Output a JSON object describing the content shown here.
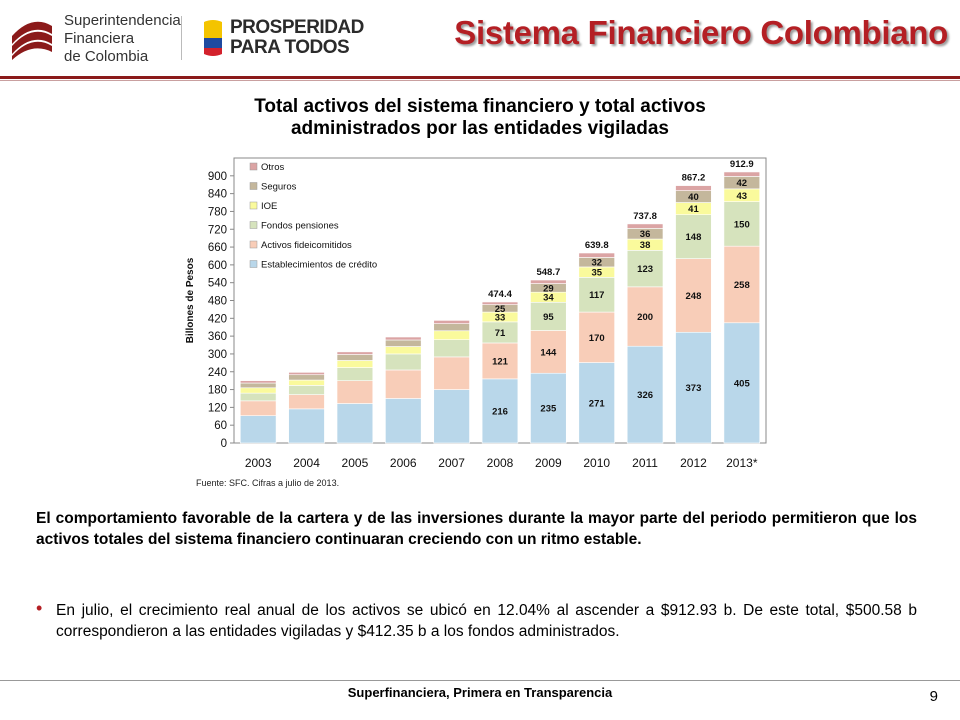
{
  "header": {
    "org_name": [
      "Superintendencia",
      "Financiera",
      "de Colombia"
    ],
    "campaign": [
      "PROSPERIDAD",
      "PARA TODOS"
    ],
    "slide_title": "Sistema Financiero Colombiano"
  },
  "chart_data": {
    "type": "bar",
    "stacked": true,
    "title": "Total activos del sistema financiero y total activos administrados por las entidades vigiladas",
    "title_lines": [
      "Total activos del sistema financiero y total activos",
      "administrados por las entidades vigiladas"
    ],
    "xlabel": "",
    "ylabel": "Billones de Pesos",
    "ylim": [
      0,
      960
    ],
    "yticks": [
      0,
      60,
      120,
      180,
      240,
      300,
      360,
      420,
      480,
      540,
      600,
      660,
      720,
      780,
      840,
      900
    ],
    "grid": false,
    "legend_position": "top-left",
    "categories": [
      "2003",
      "2004",
      "2005",
      "2006",
      "2007",
      "2008",
      "2009",
      "2010",
      "2011",
      "2012",
      "2013*"
    ],
    "series": [
      {
        "name": "Establecimientos de crédito",
        "color": "#b9d7ea",
        "values": [
          92,
          115,
          133,
          150,
          180,
          216,
          235,
          271,
          326,
          373,
          405
        ],
        "labels": [
          "",
          "",
          "",
          "",
          "",
          "216",
          "235",
          "271",
          "326",
          "373",
          "405"
        ]
      },
      {
        "name": "Activos fideicomitidos",
        "color": "#f8cdb8",
        "values": [
          50,
          48,
          77,
          96,
          110,
          121,
          144,
          170,
          200,
          248,
          258
        ],
        "labels": [
          "",
          "",
          "",
          "",
          "",
          "121",
          "144",
          "170",
          "200",
          "248",
          "258"
        ]
      },
      {
        "name": "Fondos pensiones",
        "color": "#d6e3bd",
        "values": [
          26,
          31,
          44,
          54,
          58,
          71,
          95,
          117,
          123,
          148,
          150
        ],
        "labels": [
          "",
          "",
          "",
          "",
          "",
          "71",
          "95",
          "117",
          "123",
          "148",
          "150"
        ]
      },
      {
        "name": "IOE",
        "color": "#fafa9c",
        "values": [
          18,
          18,
          24,
          25,
          30,
          33,
          34,
          35,
          38,
          41,
          43
        ],
        "labels": [
          "",
          "",
          "",
          "",
          "",
          "33",
          "34",
          "35",
          "38",
          "41",
          "43"
        ]
      },
      {
        "name": "Seguros",
        "color": "#c4b79c",
        "values": [
          16,
          18,
          20,
          22,
          24,
          25,
          29,
          32,
          36,
          40,
          42
        ],
        "labels": [
          "",
          "",
          "",
          "",
          "",
          "25",
          "29",
          "32",
          "36",
          "40",
          "42"
        ]
      },
      {
        "name": "Otros",
        "color": "#dba4a4",
        "values": [
          8,
          8,
          9,
          10,
          11,
          9,
          12,
          15,
          15,
          17,
          15
        ],
        "labels": [
          "",
          "",
          "",
          "",
          "",
          "",
          "",
          "",
          "",
          "",
          ""
        ]
      }
    ],
    "totals": [
      "",
      "",
      "",
      "",
      "",
      "474.4",
      "548.7",
      "639.8",
      "737.8",
      "867.2",
      "912.9"
    ]
  },
  "source": "Fuente: SFC. Cifras a julio de 2013.",
  "body": {
    "paragraph": "El comportamiento favorable de la cartera y de las inversiones durante la mayor parte del periodo permitieron que los activos totales del sistema financiero continuaran creciendo con un ritmo estable.",
    "bullet": "En julio, el crecimiento real anual de los activos se ubicó en 12.04% al ascender a $912.93 b. De este total, $500.58 b correspondieron a las entidades vigiladas y $412.35 b a los fondos administrados."
  },
  "footer": {
    "tagline": "Superfinanciera, Primera en Transparencia",
    "page_number": "9"
  }
}
